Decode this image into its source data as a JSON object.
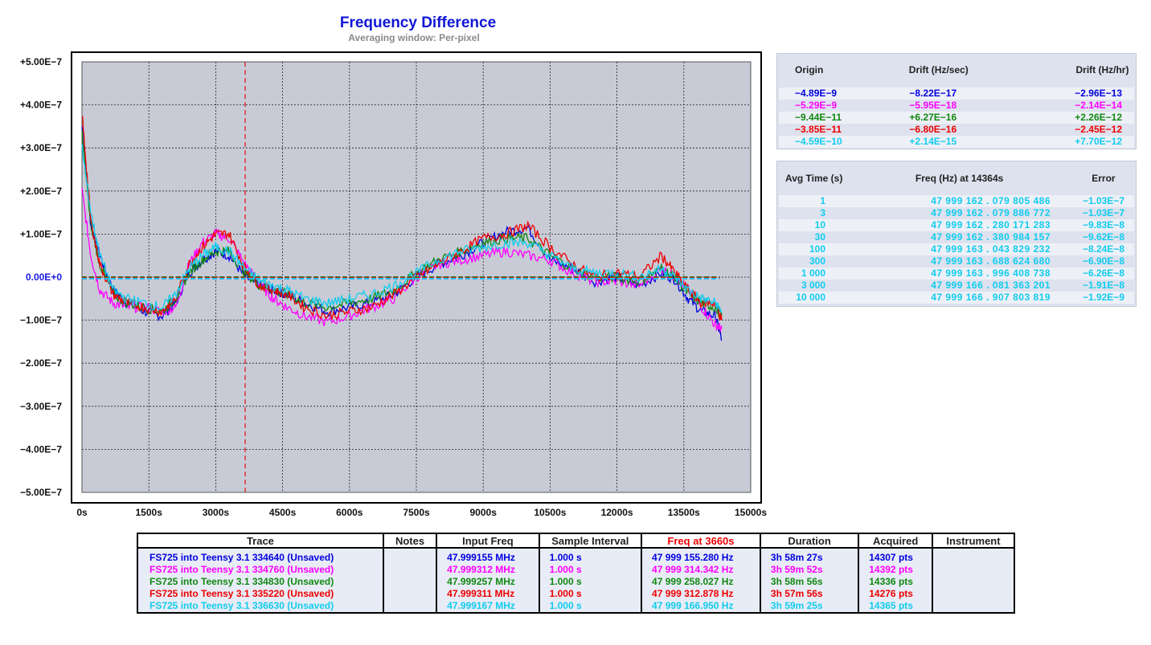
{
  "chart_data": {
    "type": "line",
    "title": "Frequency Difference",
    "subtitle": "Averaging window: Per-pixel",
    "xlim": [
      0,
      15000
    ],
    "ylim": [
      -5e-07,
      5e-07
    ],
    "x_ticks": [
      "0s",
      "1500s",
      "3000s",
      "4500s",
      "6000s",
      "7500s",
      "9000s",
      "10500s",
      "12000s",
      "13500s",
      "15000s"
    ],
    "y_ticks": [
      "+5.00E−7",
      "+4.00E−7",
      "+3.00E−7",
      "+2.00E−7",
      "+1.00E−7",
      "0.00E+0",
      "−1.00E−7",
      "−2.00E−7",
      "−3.00E−7",
      "−4.00E−7",
      "−5.00E−7"
    ],
    "grid": true,
    "marker_x": 3660,
    "x": [
      0,
      200,
      400,
      700,
      1000,
      1400,
      1800,
      2100,
      2400,
      2700,
      3000,
      3300,
      3660,
      4000,
      4300,
      4600,
      5000,
      5500,
      6000,
      6500,
      7000,
      7500,
      8000,
      8500,
      9000,
      9500,
      10000,
      10500,
      11000,
      11500,
      12000,
      12500,
      13000,
      13300,
      13600,
      13900,
      14200,
      14350
    ],
    "series": [
      {
        "name": "FS725  into Teensy 3.1 334640 (Unsaved)",
        "color": "#0000dd",
        "values": [
          3.5e-07,
          1.2e-07,
          5e-08,
          -3e-08,
          -6e-08,
          -8e-08,
          -9e-08,
          -6e-08,
          1e-08,
          4e-08,
          6e-08,
          5e-08,
          0,
          -2e-08,
          -3e-08,
          -4e-08,
          -6e-08,
          -8e-08,
          -7e-08,
          -6e-08,
          -4e-08,
          0,
          3e-08,
          5e-08,
          8e-08,
          1.05e-07,
          1.15e-07,
          4e-08,
          2e-08,
          -1e-08,
          0,
          -2e-08,
          1e-08,
          -5e-09,
          -5e-08,
          -8e-08,
          -9e-08,
          -1.45e-07
        ]
      },
      {
        "name": "FS725  into Teensy 3.1 334760 (Unsaved)",
        "color": "#ff00ff",
        "values": [
          2e-07,
          5e-08,
          -3e-08,
          -6e-08,
          -7e-08,
          -7e-08,
          -8e-08,
          -7e-08,
          3e-08,
          8e-08,
          1e-07,
          9e-08,
          3e-08,
          -2e-08,
          -5e-08,
          -7e-08,
          -9e-08,
          -1.05e-07,
          -9e-08,
          -7e-08,
          -5e-08,
          0,
          3e-08,
          4e-08,
          5e-08,
          6e-08,
          5e-08,
          4e-08,
          1e-08,
          -1e-08,
          -1e-08,
          -2e-08,
          2e-08,
          0,
          -3e-08,
          -7e-08,
          -1.1e-07,
          -1.2e-07
        ]
      },
      {
        "name": "FS725  into Teensy 3.1 334830 (Unsaved)",
        "color": "#118811",
        "values": [
          3.3e-07,
          1.2e-07,
          3e-08,
          -4e-08,
          -6e-08,
          -7e-08,
          -8e-08,
          -5e-08,
          1e-08,
          4e-08,
          6e-08,
          6e-08,
          1e-08,
          -2e-08,
          -3e-08,
          -4e-08,
          -6e-08,
          -7e-08,
          -6e-08,
          -5e-08,
          -3e-08,
          1e-08,
          4e-08,
          6e-08,
          8e-08,
          9e-08,
          9e-08,
          5e-08,
          2e-08,
          0,
          0,
          -1e-08,
          2e-08,
          0,
          -4e-08,
          -6e-08,
          -7e-08,
          -9e-08
        ]
      },
      {
        "name": "FS725  into Teensy 3.1 335220 (Unsaved)",
        "color": "#ee0000",
        "values": [
          3.8e-07,
          1.3e-07,
          3e-08,
          -4e-08,
          -6e-08,
          -7e-08,
          -8e-08,
          -5e-08,
          3e-08,
          7e-08,
          1e-07,
          1e-07,
          2e-08,
          -2e-08,
          -3e-08,
          -4e-08,
          -7e-08,
          -9e-08,
          -8e-08,
          -7e-08,
          -4e-08,
          0,
          3e-08,
          6e-08,
          9e-08,
          1e-07,
          1.2e-07,
          7e-08,
          3e-08,
          0,
          1e-08,
          0,
          5e-08,
          1e-08,
          -3e-08,
          -6e-08,
          -6e-08,
          -1e-07
        ]
      },
      {
        "name": "FS725  into Teensy 3.1 336630 (Unsaved)",
        "color": "#11ccee",
        "values": [
          3e-07,
          1.5e-07,
          5e-08,
          -3e-08,
          -5e-08,
          -6e-08,
          -7e-08,
          -4e-08,
          2e-08,
          5e-08,
          7e-08,
          6e-08,
          2e-08,
          -1e-08,
          -2e-08,
          -3e-08,
          -5e-08,
          -6e-08,
          -5e-08,
          -4e-08,
          -2e-08,
          1e-08,
          4e-08,
          6e-08,
          7e-08,
          8e-08,
          8e-08,
          5e-08,
          2e-08,
          1e-08,
          1e-08,
          0,
          2e-08,
          0,
          -3e-08,
          -5e-08,
          -6e-08,
          -8e-08
        ]
      }
    ],
    "origins": [
      -4.89e-09,
      -5.29e-09,
      -9.44e-11,
      -3.85e-11,
      -4.59e-10
    ]
  },
  "drift_panel": {
    "headers": [
      "Origin",
      "Drift (Hz/sec)",
      "Drift (Hz/hr)"
    ],
    "rows": [
      {
        "origin": "−4.89E−9",
        "drift_sec": "−8.22E−17",
        "drift_hr": "−2.96E−13",
        "color": "#0000dd"
      },
      {
        "origin": "−5.29E−9",
        "drift_sec": "−5.95E−18",
        "drift_hr": "−2.14E−14",
        "color": "#ff00ff"
      },
      {
        "origin": "−9.44E−11",
        "drift_sec": "+6.27E−16",
        "drift_hr": "+2.26E−12",
        "color": "#118811"
      },
      {
        "origin": "−3.85E−11",
        "drift_sec": "−6.80E−16",
        "drift_hr": "−2.45E−12",
        "color": "#ee0000"
      },
      {
        "origin": "−4.59E−10",
        "drift_sec": "+2.14E−15",
        "drift_hr": "+7.70E−12",
        "color": "#11ccee"
      }
    ]
  },
  "avg_panel": {
    "headers": [
      "Avg Time (s)",
      "Freq (Hz) at 14364s",
      "Error"
    ],
    "color": "#11ccee",
    "rows": [
      {
        "t": "1",
        "f": "47 999 162 . 079 805 486",
        "e": "−1.03E−7"
      },
      {
        "t": "3",
        "f": "47 999 162 . 079 886 772",
        "e": "−1.03E−7"
      },
      {
        "t": "10",
        "f": "47 999 162 . 280 171 283",
        "e": "−9.83E−8"
      },
      {
        "t": "30",
        "f": "47 999 162 . 380 984 157",
        "e": "−9.62E−8"
      },
      {
        "t": "100",
        "f": "47 999 163 . 043 829 232",
        "e": "−8.24E−8"
      },
      {
        "t": "300",
        "f": "47 999 163 . 688 624 680",
        "e": "−6.90E−8"
      },
      {
        "t": "1 000",
        "f": "47 999 163 . 996 408 738",
        "e": "−6.26E−8"
      },
      {
        "t": "3 000",
        "f": "47 999 166 . 081 363 201",
        "e": "−1.91E−8"
      },
      {
        "t": "10 000",
        "f": "47 999 166 . 907 803 819",
        "e": "−1.92E−9"
      }
    ]
  },
  "trace_table": {
    "headers": [
      "Trace",
      "Notes",
      "Input Freq",
      "Sample Interval",
      "Freq at 3660s",
      "Duration",
      "Acquired",
      "Instrument"
    ],
    "highlight_header_color": "#ee0000",
    "rows": [
      {
        "trace": "FS725  into Teensy 3.1 334640 (Unsaved)",
        "notes": "",
        "input": "47.999155 MHz",
        "interval": "1.000 s",
        "freq": "47 999 155.280 Hz",
        "duration": "3h 58m 27s",
        "acquired": "14307 pts",
        "instrument": "",
        "color": "#0000dd"
      },
      {
        "trace": "FS725  into Teensy 3.1 334760 (Unsaved)",
        "notes": "",
        "input": "47.999312 MHz",
        "interval": "1.000 s",
        "freq": "47 999 314.342 Hz",
        "duration": "3h 59m 52s",
        "acquired": "14392 pts",
        "instrument": "",
        "color": "#ff00ff"
      },
      {
        "trace": "FS725  into Teensy 3.1 334830 (Unsaved)",
        "notes": "",
        "input": "47.999257 MHz",
        "interval": "1.000 s",
        "freq": "47 999 258.027 Hz",
        "duration": "3h 58m 56s",
        "acquired": "14336 pts",
        "instrument": "",
        "color": "#118811"
      },
      {
        "trace": "FS725  into Teensy 3.1 335220 (Unsaved)",
        "notes": "",
        "input": "47.999311 MHz",
        "interval": "1.000 s",
        "freq": "47 999 312.878 Hz",
        "duration": "3h 57m 56s",
        "acquired": "14276 pts",
        "instrument": "",
        "color": "#ee0000"
      },
      {
        "trace": "FS725  into Teensy 3.1 336630 (Unsaved)",
        "notes": "",
        "input": "47.999167 MHz",
        "interval": "1.000 s",
        "freq": "47 999 166.950 Hz",
        "duration": "3h 59m 25s",
        "acquired": "14365 pts",
        "instrument": "",
        "color": "#11ccee"
      }
    ]
  }
}
